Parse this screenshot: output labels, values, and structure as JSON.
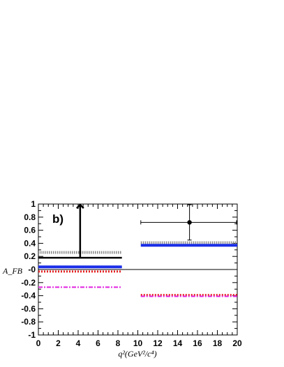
{
  "chart_data": {
    "type": "line",
    "panel_label": "b)",
    "xlabel": "q²(GeV²/c⁴)",
    "ylabel": "A_FB",
    "xlim": [
      0,
      20
    ],
    "ylim": [
      -1,
      1
    ],
    "xticks": [
      "0",
      "2",
      "4",
      "6",
      "8",
      "10",
      "12",
      "14",
      "16",
      "18",
      "20"
    ],
    "yticks": [
      "-1",
      "-0.8",
      "-0.6",
      "-0.4",
      "-0.2",
      "-0",
      "0.2",
      "0.4",
      "0.6",
      "0.8",
      "1"
    ],
    "series": [
      {
        "style": "dotted-gray",
        "color": "#888888",
        "segments": [
          {
            "x": [
              0,
              8.4
            ],
            "y": 0.26
          },
          {
            "x": [
              10.3,
              20
            ],
            "y": 0.41
          }
        ]
      },
      {
        "style": "solid-black",
        "color": "#000000",
        "segments": [
          {
            "x": [
              0,
              8.4
            ],
            "y": 0.18
          }
        ]
      },
      {
        "style": "solid-blue",
        "color": "#1a2ee8",
        "segments": [
          {
            "x": [
              0,
              8.4
            ],
            "y": 0.04
          },
          {
            "x": [
              10.3,
              20
            ],
            "y": 0.37
          }
        ]
      },
      {
        "style": "dotted-red",
        "color": "#e62020",
        "segments": [
          {
            "x": [
              0,
              8.4
            ],
            "y": -0.03
          },
          {
            "x": [
              10.3,
              20
            ],
            "y": -0.39
          }
        ]
      },
      {
        "style": "dashdot-magenta",
        "color": "#e020e0",
        "segments": [
          {
            "x": [
              0,
              8.4
            ],
            "y": -0.27
          },
          {
            "x": [
              10.3,
              20
            ],
            "y": -0.41
          }
        ]
      }
    ],
    "arrow": {
      "x": 4.2,
      "y_from": 0.18,
      "y_to": 1.0
    },
    "measurement": {
      "x": 15.2,
      "y": 0.72,
      "x_err": [
        10.3,
        20
      ],
      "y_err": [
        0.45,
        1.0
      ]
    }
  }
}
